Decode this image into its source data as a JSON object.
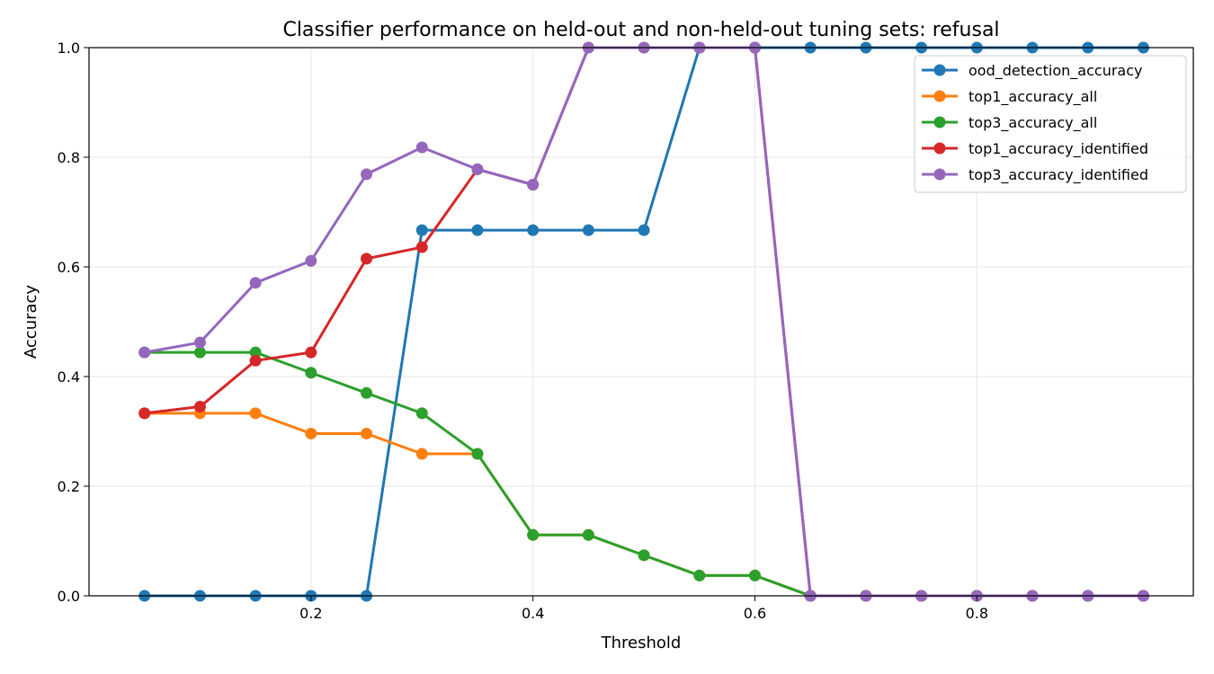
{
  "chart_data": {
    "type": "line",
    "title": "Classifier performance on held-out and non-held-out tuning sets: refusal",
    "xlabel": "Threshold",
    "ylabel": "Accuracy",
    "xlim": [
      0.0,
      0.995
    ],
    "ylim": [
      0.0,
      1.0
    ],
    "xticks": [
      "0.2",
      "0.4",
      "0.6",
      "0.8"
    ],
    "xtick_values": [
      0.2,
      0.4,
      0.6,
      0.8
    ],
    "yticks": [
      "0.0",
      "0.2",
      "0.4",
      "0.6",
      "0.8",
      "1.0"
    ],
    "ytick_values": [
      0.0,
      0.2,
      0.4,
      0.6,
      0.8,
      1.0
    ],
    "grid": true,
    "legend_position": "top-right",
    "x": [
      0.05,
      0.1,
      0.15,
      0.2,
      0.25,
      0.3,
      0.35,
      0.4,
      0.45,
      0.5,
      0.55,
      0.6,
      0.65,
      0.7,
      0.75,
      0.8,
      0.85,
      0.9,
      0.95
    ],
    "series": [
      {
        "name": "ood_detection_accuracy",
        "color": "#1f77b4",
        "values": [
          0,
          0,
          0,
          0,
          0,
          0.667,
          0.667,
          0.667,
          0.667,
          0.667,
          1.0,
          1.0,
          1.0,
          1.0,
          1.0,
          1.0,
          1.0,
          1.0,
          1.0
        ]
      },
      {
        "name": "top1_accuracy_all",
        "color": "#ff7f0e",
        "values": [
          0.333,
          0.333,
          0.333,
          0.296,
          0.296,
          0.259,
          0.259,
          0.111,
          0.111,
          0.074,
          0.037,
          0.037,
          0,
          0,
          0,
          0,
          0,
          0,
          0
        ]
      },
      {
        "name": "top3_accuracy_all",
        "color": "#2ca02c",
        "values": [
          0.444,
          0.444,
          0.444,
          0.407,
          0.37,
          0.333,
          0.259,
          0.111,
          0.111,
          0.074,
          0.037,
          0.037,
          0,
          0,
          0,
          0,
          0,
          0,
          0
        ]
      },
      {
        "name": "top1_accuracy_identified",
        "color": "#d62728",
        "values": [
          0.333,
          0.345,
          0.429,
          0.444,
          0.615,
          0.636,
          0.778,
          0.75,
          1.0,
          1.0,
          1.0,
          1.0,
          0,
          0,
          0,
          0,
          0,
          0,
          0
        ]
      },
      {
        "name": "top3_accuracy_identified",
        "color": "#9467bd",
        "values": [
          0.444,
          0.462,
          0.571,
          0.611,
          0.769,
          0.818,
          0.778,
          0.75,
          1.0,
          1.0,
          1.0,
          1.0,
          0,
          0,
          0,
          0,
          0,
          0,
          0
        ]
      }
    ]
  }
}
